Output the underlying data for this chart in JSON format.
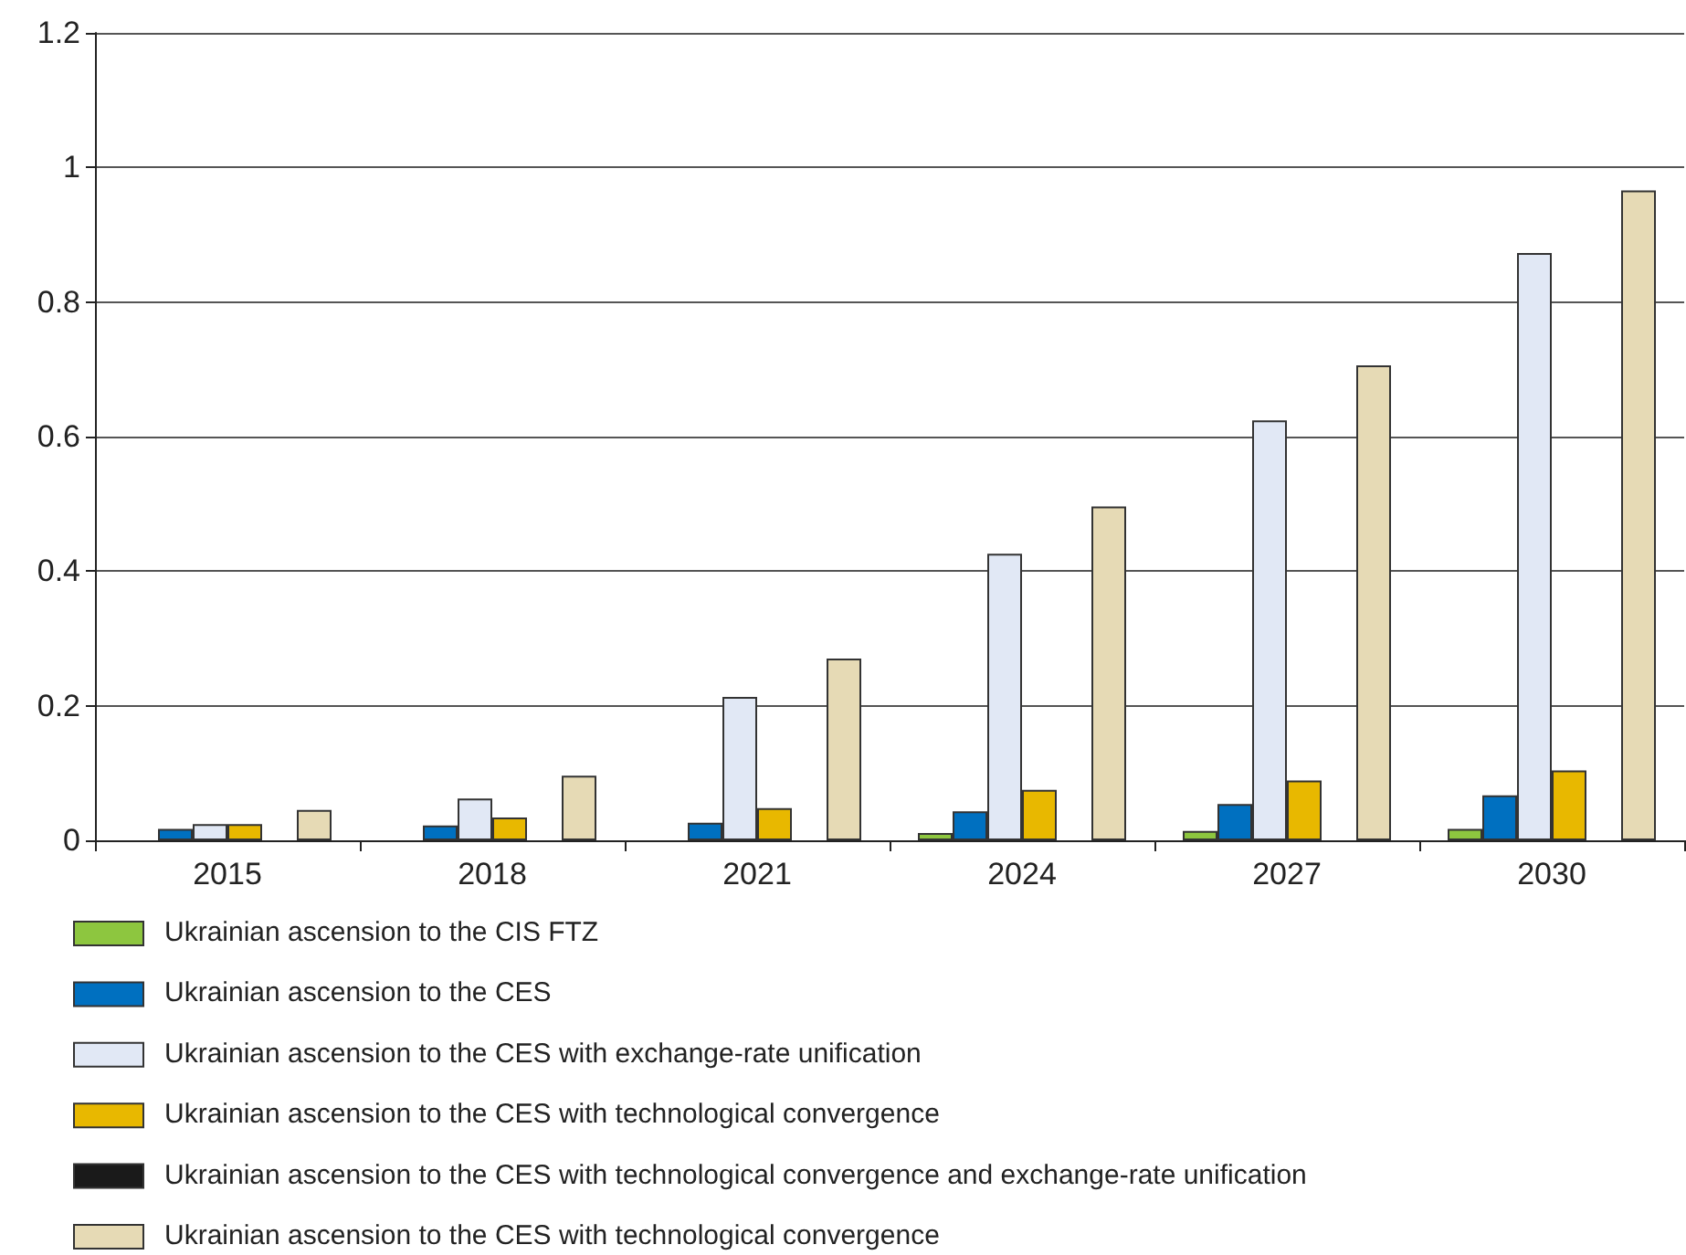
{
  "chart_data": {
    "type": "bar",
    "categories": [
      "2015",
      "2018",
      "2021",
      "2024",
      "2027",
      "2030"
    ],
    "series": [
      {
        "name": "Ukrainian ascension to the CIS FTZ",
        "color": "#8dc63f",
        "values": [
          0,
          0,
          0,
          0.011,
          0.014,
          0.017
        ]
      },
      {
        "name": "Ukrainian ascension to the CES",
        "color": "#0070c0",
        "values": [
          0.017,
          0.022,
          0.026,
          0.043,
          0.054,
          0.067
        ]
      },
      {
        "name": "Ukrainian ascension to the CES with exchange-rate unification",
        "color": "#e1e8f5",
        "values": [
          0.024,
          0.062,
          0.213,
          0.426,
          0.624,
          0.873
        ]
      },
      {
        "name": "Ukrainian ascension to the CES with technological convergence",
        "color": "#e8b800",
        "values": [
          0.024,
          0.034,
          0.048,
          0.075,
          0.089,
          0.104
        ]
      },
      {
        "name": "Ukrainian ascension to the CES with technological convergence and exchange-rate unification",
        "color": "#1a1a1a",
        "values": [
          0,
          0,
          0,
          0,
          0,
          0
        ]
      },
      {
        "name": "Ukrainian ascension to the CES with technological convergence",
        "color": "#e6dab5",
        "values": [
          0.045,
          0.096,
          0.27,
          0.496,
          0.706,
          0.966
        ]
      }
    ],
    "ylim": [
      0,
      1.2
    ],
    "yticks": [
      0,
      0.2,
      0.4,
      0.6,
      0.8,
      1,
      1.2
    ],
    "grid": "y",
    "legend": "bottom"
  }
}
